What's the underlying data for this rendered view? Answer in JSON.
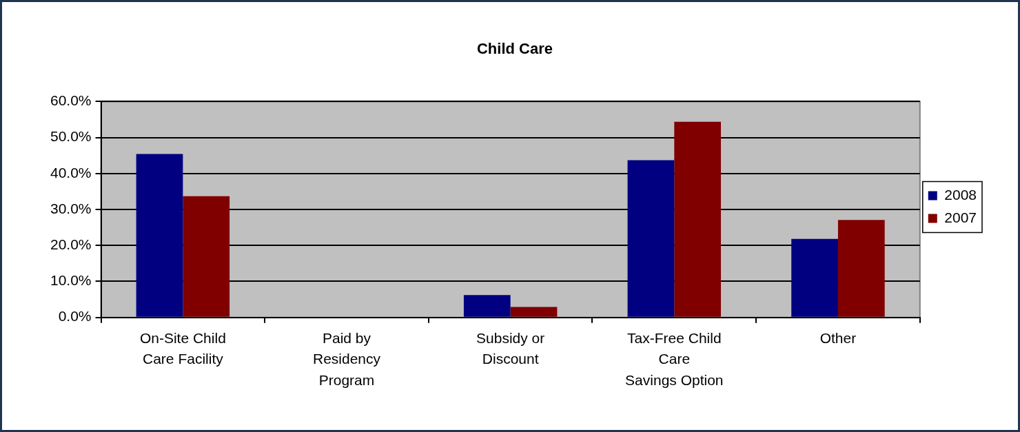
{
  "chart_data": {
    "type": "bar",
    "title": "Child Care",
    "categories": [
      "On-Site Child Care Facility",
      "Paid by Residency Program",
      "Subsidy or Discount",
      "Tax-Free Child Care\nSavings Option",
      "Other"
    ],
    "series": [
      {
        "name": "2008",
        "color": "#000080",
        "values": [
          45.4,
          0,
          6.2,
          43.7,
          21.8
        ]
      },
      {
        "name": "2007",
        "color": "#800000",
        "values": [
          33.7,
          0,
          2.9,
          54.4,
          27.1
        ]
      }
    ],
    "ylim": [
      0,
      60
    ],
    "yticks": [
      {
        "value": 0,
        "label": "0.0%"
      },
      {
        "value": 10,
        "label": "10.0%"
      },
      {
        "value": 20,
        "label": "20.0%"
      },
      {
        "value": 30,
        "label": "30.0%"
      },
      {
        "value": 40,
        "label": "40.0%"
      },
      {
        "value": 50,
        "label": "50.0%"
      },
      {
        "value": 60,
        "label": "60.0%"
      }
    ],
    "grid": "y",
    "legend": "right"
  }
}
